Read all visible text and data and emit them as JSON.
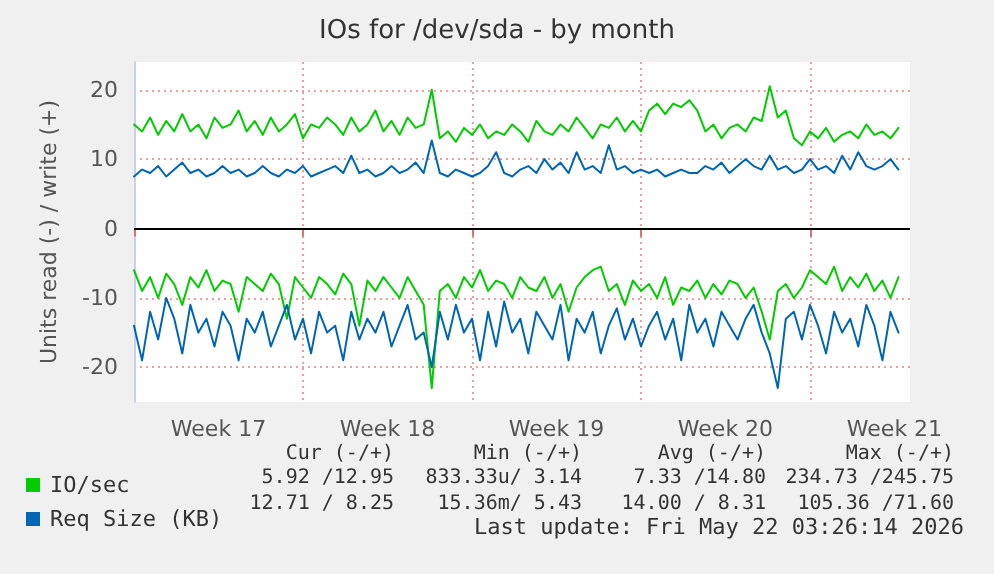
{
  "chart_data": {
    "type": "line",
    "title": "IOs for /dev/sda - by month",
    "ylabel": "Units read (-) / write (+)",
    "x": [
      "2026-04-20T00:00",
      "2026-04-20T08:00",
      "2026-04-20T16:00",
      "2026-04-21T00:00",
      "2026-04-21T08:00",
      "2026-04-21T16:00",
      "2026-04-22T00:00",
      "2026-04-22T08:00",
      "2026-04-22T16:00",
      "2026-04-23T00:00",
      "2026-04-23T08:00",
      "2026-04-23T16:00",
      "2026-04-24T00:00",
      "2026-04-24T08:00",
      "2026-04-24T16:00",
      "2026-04-25T00:00",
      "2026-04-25T08:00",
      "2026-04-25T16:00",
      "2026-04-26T00:00",
      "2026-04-26T08:00",
      "2026-04-26T16:00",
      "2026-04-27T00:00",
      "2026-04-27T08:00",
      "2026-04-27T16:00",
      "2026-04-28T00:00",
      "2026-04-28T08:00",
      "2026-04-28T16:00",
      "2026-04-29T00:00",
      "2026-04-29T08:00",
      "2026-04-29T16:00",
      "2026-04-30T00:00",
      "2026-04-30T08:00",
      "2026-04-30T16:00",
      "2026-05-01T00:00",
      "2026-05-01T08:00",
      "2026-05-01T16:00",
      "2026-05-02T00:00",
      "2026-05-02T08:00",
      "2026-05-02T16:00",
      "2026-05-03T00:00",
      "2026-05-03T08:00",
      "2026-05-03T16:00",
      "2026-05-04T00:00",
      "2026-05-04T08:00",
      "2026-05-04T16:00",
      "2026-05-05T00:00",
      "2026-05-05T08:00",
      "2026-05-05T16:00",
      "2026-05-06T00:00",
      "2026-05-06T08:00",
      "2026-05-06T16:00",
      "2026-05-07T00:00",
      "2026-05-07T08:00",
      "2026-05-07T16:00",
      "2026-05-08T00:00",
      "2026-05-08T08:00",
      "2026-05-08T16:00",
      "2026-05-09T00:00",
      "2026-05-09T08:00",
      "2026-05-09T16:00",
      "2026-05-10T00:00",
      "2026-05-10T08:00",
      "2026-05-10T16:00",
      "2026-05-11T00:00",
      "2026-05-11T08:00",
      "2026-05-11T16:00",
      "2026-05-12T00:00",
      "2026-05-12T08:00",
      "2026-05-12T16:00",
      "2026-05-13T00:00",
      "2026-05-13T08:00",
      "2026-05-13T16:00",
      "2026-05-14T00:00",
      "2026-05-14T08:00",
      "2026-05-14T16:00",
      "2026-05-15T00:00",
      "2026-05-15T08:00",
      "2026-05-15T16:00",
      "2026-05-16T00:00",
      "2026-05-16T08:00",
      "2026-05-16T16:00",
      "2026-05-17T00:00",
      "2026-05-17T08:00",
      "2026-05-17T16:00",
      "2026-05-18T00:00",
      "2026-05-18T08:00",
      "2026-05-18T16:00",
      "2026-05-19T00:00",
      "2026-05-19T08:00",
      "2026-05-19T16:00",
      "2026-05-20T00:00",
      "2026-05-20T08:00",
      "2026-05-20T16:00",
      "2026-05-21T00:00",
      "2026-05-21T08:00",
      "2026-05-21T16:00"
    ],
    "series": [
      {
        "name": "IO/sec",
        "color": "#00cc00",
        "values": [
          15,
          14,
          16,
          13.5,
          15.5,
          14,
          16.5,
          14,
          15,
          13,
          16,
          14.5,
          15,
          17,
          14,
          15.5,
          13.5,
          16,
          14,
          15,
          16.5,
          13,
          15,
          14.5,
          16,
          15,
          13.5,
          16,
          14,
          15,
          17,
          14,
          15.5,
          13.5,
          16,
          14.5,
          15,
          20,
          13,
          14,
          12.5,
          14.5,
          13.5,
          15,
          13,
          14,
          13.5,
          15,
          14,
          12.5,
          15.5,
          14,
          13.5,
          15,
          14,
          16,
          14.5,
          13,
          15,
          14.5,
          16,
          14,
          15.5,
          14,
          17,
          18,
          16.5,
          18,
          17.5,
          18.5,
          17,
          14,
          15,
          13,
          14.5,
          15,
          14,
          16,
          15.5,
          20.5,
          16,
          17,
          13,
          12,
          14,
          13,
          14.5,
          12.5,
          13.5,
          14,
          13,
          15,
          13.5,
          14,
          13,
          14.5
        ]
      },
      {
        "color": "#00cc00",
        "values": [
          -6,
          -9,
          -7,
          -10,
          -6.5,
          -8,
          -11,
          -7,
          -8.5,
          -6,
          -9,
          -7.5,
          -8,
          -12,
          -7,
          -8,
          -9,
          -6.5,
          -8,
          -13,
          -7,
          -8.5,
          -10,
          -7,
          -8,
          -9.5,
          -6.5,
          -8,
          -14,
          -7.5,
          -9,
          -7,
          -8.5,
          -10,
          -7,
          -9,
          -11,
          -23,
          -9,
          -8,
          -10,
          -7,
          -8.5,
          -6,
          -9,
          -7.5,
          -8,
          -10,
          -7,
          -8.5,
          -9,
          -7,
          -10,
          -8,
          -12,
          -8.5,
          -7,
          -6,
          -5.5,
          -9,
          -8,
          -11,
          -7.5,
          -9,
          -8,
          -10,
          -7,
          -11,
          -8.5,
          -9,
          -7.5,
          -10,
          -8,
          -9.5,
          -7.5,
          -8,
          -10,
          -8.5,
          -12,
          -16,
          -9,
          -8,
          -10,
          -8.5,
          -6,
          -7,
          -8,
          -5.5,
          -9,
          -7,
          -8.5,
          -6.5,
          -9,
          -7.5,
          -10,
          -7
        ]
      },
      {
        "name": "Req Size (KB)",
        "color": "#0066b3",
        "values": [
          7.5,
          8.5,
          8,
          9,
          7.5,
          8.5,
          9.5,
          8,
          8.5,
          7.5,
          8,
          9,
          8,
          8.5,
          7.5,
          8,
          9,
          8,
          7.5,
          8.5,
          8,
          9,
          7.5,
          8,
          8.5,
          9,
          8,
          10.5,
          8,
          8.5,
          7.5,
          8,
          9,
          8,
          8.5,
          9.5,
          8,
          12.7,
          8,
          7.5,
          8.5,
          8,
          7.5,
          8,
          9,
          11,
          8,
          7.5,
          8.5,
          9,
          8,
          10,
          8.5,
          9.5,
          8,
          11,
          8.5,
          9,
          8,
          12,
          8.5,
          9,
          8,
          8.5,
          8,
          8.5,
          7.5,
          8,
          8.5,
          8,
          8,
          9,
          8.5,
          9.5,
          8,
          9,
          10,
          9,
          8.5,
          10.5,
          8.5,
          9,
          8,
          8.5,
          10,
          8.5,
          9,
          8,
          10.5,
          8.5,
          11,
          9,
          8.5,
          9,
          10,
          8.5
        ]
      },
      {
        "color": "#0066b3",
        "values": [
          -14,
          -19,
          -12,
          -16,
          -10,
          -13,
          -18,
          -11,
          -15,
          -13,
          -17,
          -12,
          -14,
          -19,
          -13,
          -15,
          -12,
          -17,
          -14,
          -11,
          -16,
          -13,
          -18,
          -12,
          -15,
          -14,
          -19,
          -12,
          -16,
          -13,
          -15,
          -12,
          -17,
          -14,
          -11,
          -16,
          -15,
          -20,
          -12,
          -16,
          -11,
          -15,
          -13,
          -19,
          -12,
          -17,
          -10.5,
          -15,
          -13,
          -18,
          -12,
          -14,
          -16,
          -11,
          -19,
          -13,
          -15,
          -12,
          -18,
          -14,
          -11.5,
          -16,
          -13,
          -17,
          -14,
          -12,
          -16,
          -13,
          -19,
          -11,
          -15,
          -13,
          -17,
          -12,
          -14,
          -16,
          -13,
          -11,
          -15,
          -18,
          -23,
          -13,
          -12,
          -16,
          -11,
          -14,
          -18,
          -12,
          -15,
          -13,
          -17,
          -11,
          -14,
          -19,
          -12,
          -15
        ]
      }
    ],
    "xlim": [
      "2026-04-20T00:00",
      "2026-05-22T03:26"
    ],
    "xticks": [
      {
        "value": "2026-04-20T00:00",
        "label": null
      },
      {
        "value": "2026-04-23T12:00",
        "label": "Week 17"
      },
      {
        "value": "2026-04-27T00:00",
        "label": null
      },
      {
        "value": "2026-04-30T12:00",
        "label": "Week 18"
      },
      {
        "value": "2026-05-04T00:00",
        "label": null
      },
      {
        "value": "2026-05-07T12:00",
        "label": "Week 19"
      },
      {
        "value": "2026-05-11T00:00",
        "label": null
      },
      {
        "value": "2026-05-14T12:00",
        "label": "Week 20"
      },
      {
        "value": "2026-05-18T00:00",
        "label": null
      },
      {
        "value": "2026-05-21T12:00",
        "label": "Week 21"
      }
    ],
    "ylim": [
      -25,
      24
    ],
    "yticks": [
      -20,
      -10,
      0,
      10,
      20
    ],
    "ref_lines": [
      {
        "axis": "y",
        "value": 0,
        "color": "#000000"
      }
    ],
    "grid": true,
    "legend": "bottom left",
    "marker": "none",
    "line_style": "solid",
    "annotations": [
      "Cur (-/+)",
      "Min (-/+)",
      "Avg (-/+)",
      "Max (-/+)",
      "5.92 /12.95",
      "833.33u/ 3.14",
      "7.33 /14.80",
      "234.73 /245.75",
      "12.71 / 8.25",
      "15.36m/ 5.43",
      "14.00 / 8.31",
      "105.36 /71.60",
      "Last update: Fri May 22 03:26:14 2026"
    ]
  }
}
